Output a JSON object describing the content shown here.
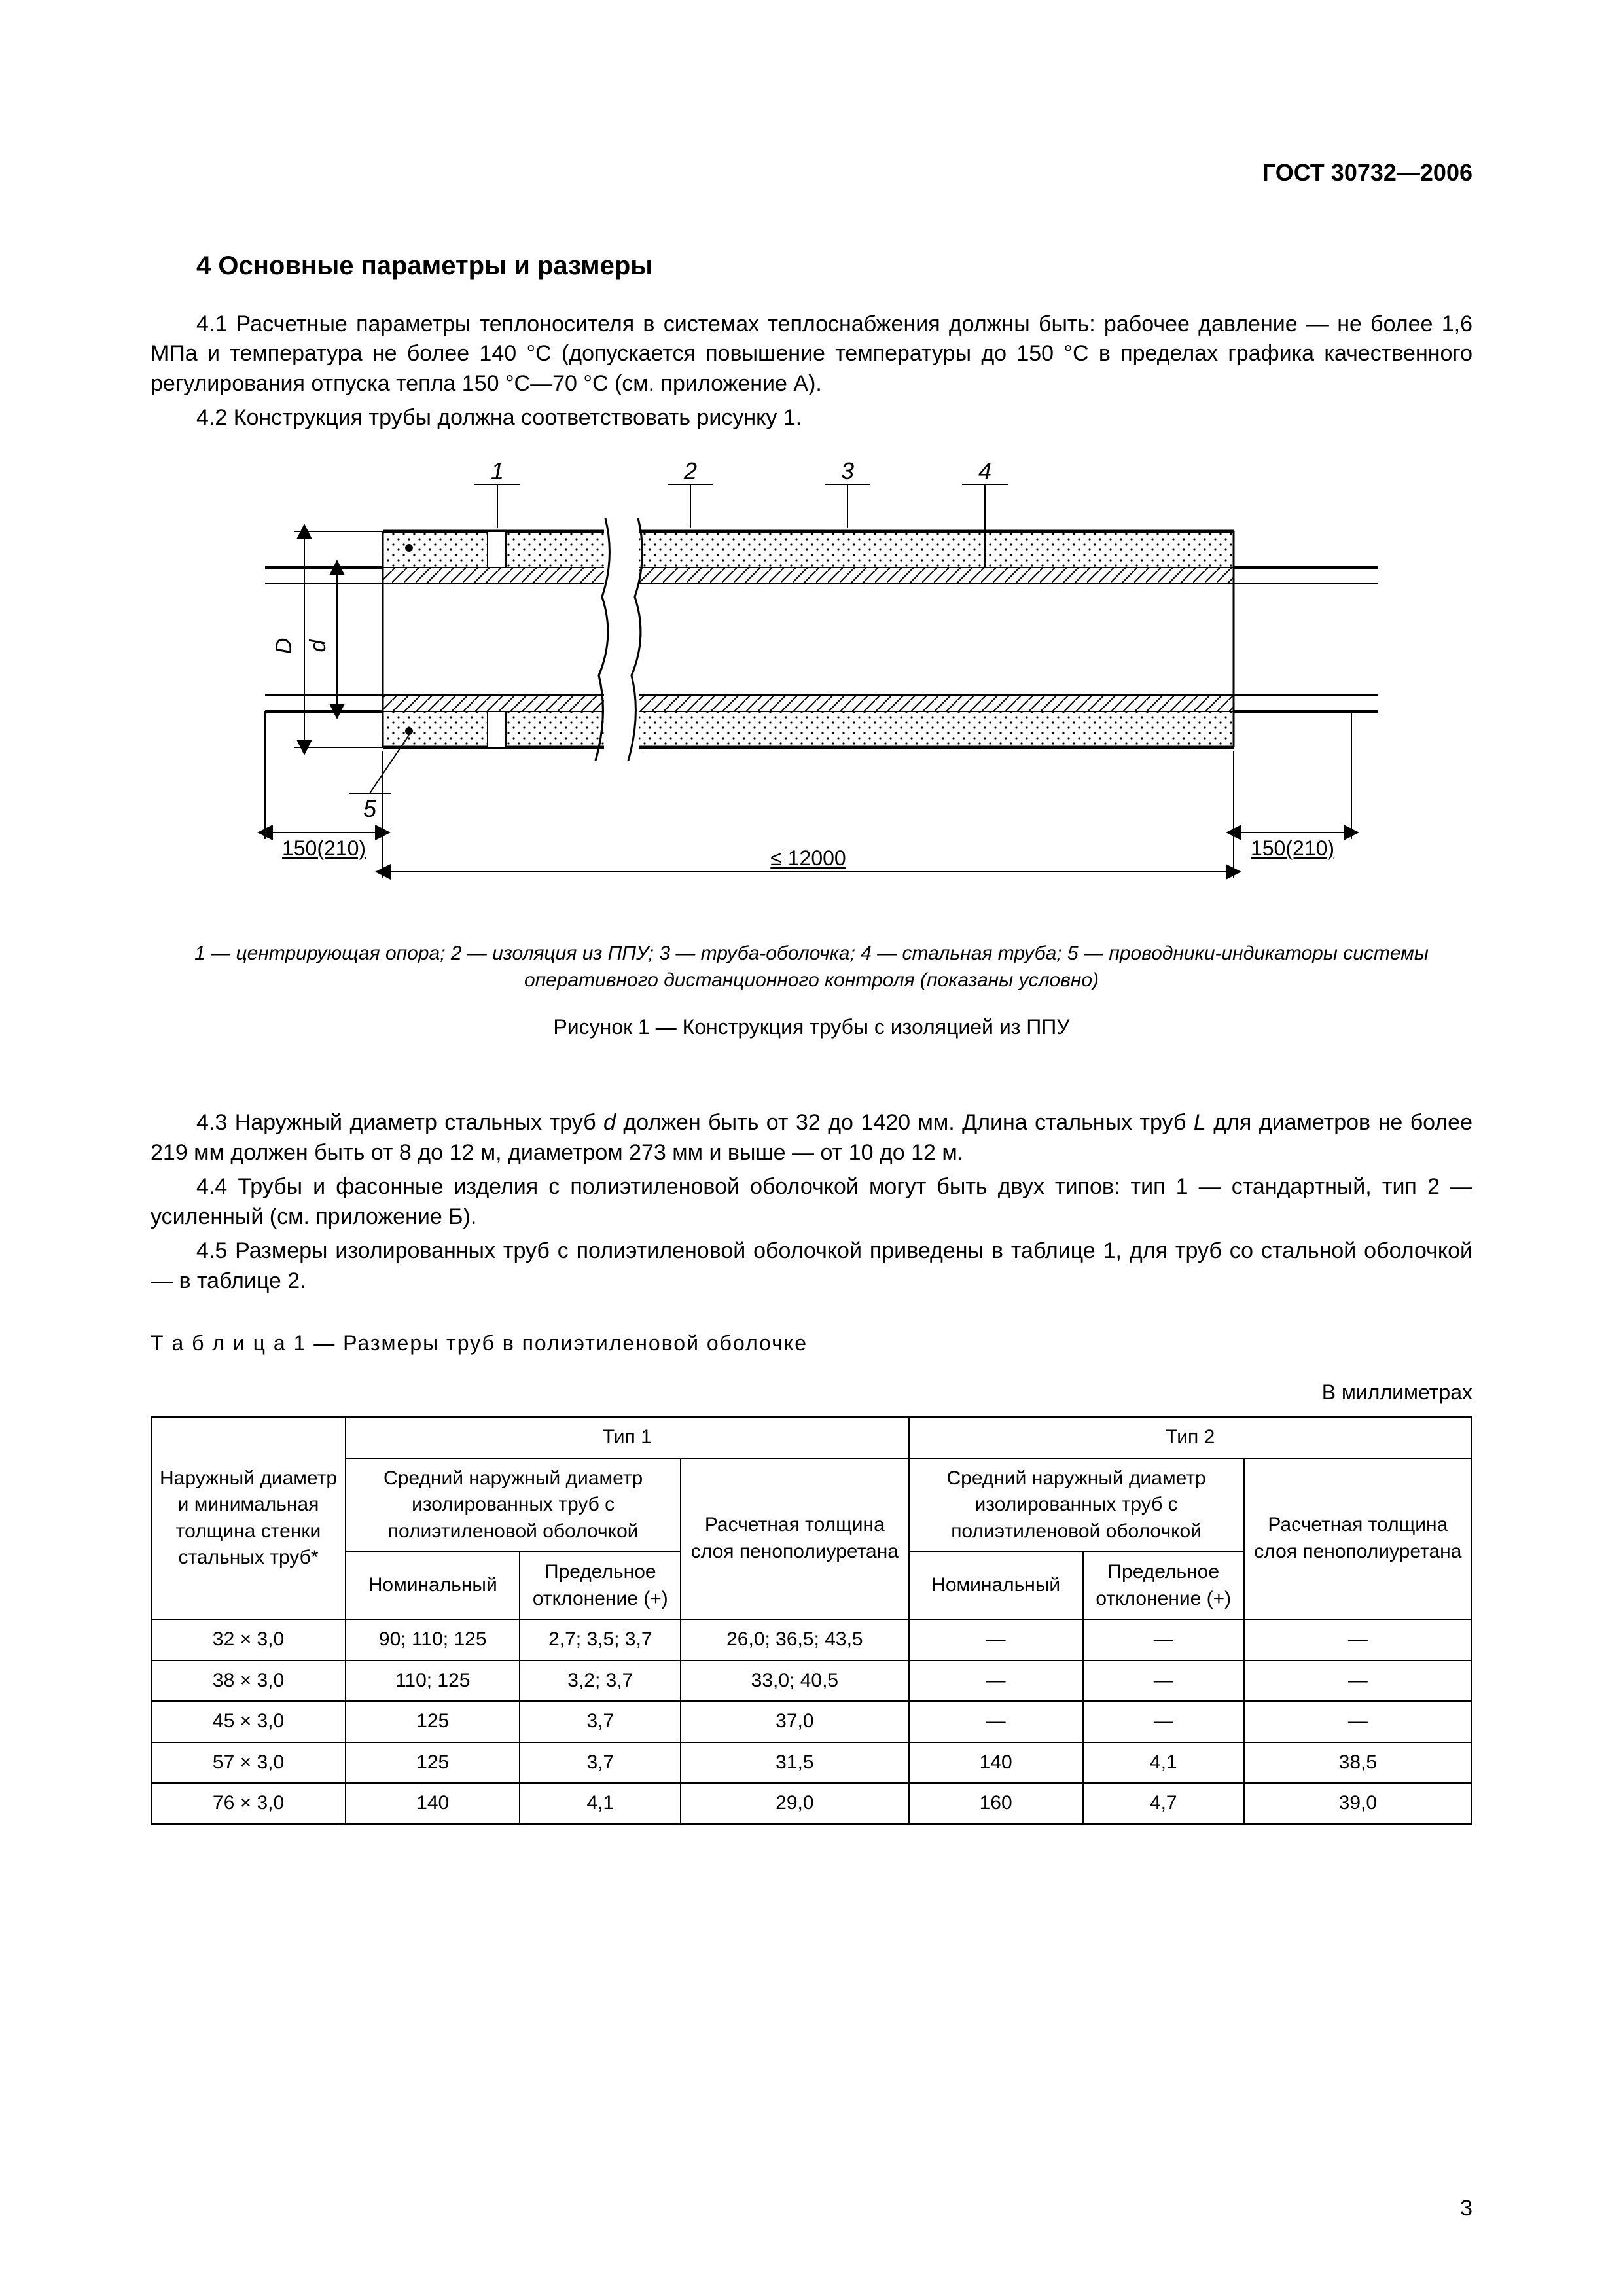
{
  "header": {
    "doc_id": "ГОСТ 30732—2006"
  },
  "section": {
    "num_title": "4  Основные параметры и размеры"
  },
  "paras": {
    "p41": "4.1  Расчетные параметры теплоносителя в системах теплоснабжения должны быть: рабочее давление — не более 1,6 МПа и температура не более 140 °С (допускается повышение температуры до 150 °С в пределах графика качественного регулирования отпуска тепла 150 °С—70 °С (см. приложение А).",
    "p42": "4.2  Конструкция трубы должна соответствовать рисунку 1.",
    "p43a": "4.3  Наружный диаметр стальных труб ",
    "p43b": " должен быть от 32 до 1420 мм. Длина стальных труб ",
    "p43c": " для диаметров не более 219 мм должен быть от 8 до 12 м, диаметром 273 мм и выше — от 10 до 12 м.",
    "p44": "4.4  Трубы и фасонные изделия с полиэтиленовой оболочкой могут быть двух типов: тип 1 — стандартный, тип 2 — усиленный (см. приложение Б).",
    "p45": "4.5  Размеры изолированных труб с полиэтиленовой оболочкой приведены в таблице 1, для труб со стальной оболочкой — в таблице 2."
  },
  "figure": {
    "dim_left": "150(210)",
    "dim_right": "150(210)",
    "length_label": "≤ 12000",
    "D_label": "D",
    "d_label": "d",
    "callouts": [
      "1",
      "2",
      "3",
      "4",
      "5"
    ],
    "legend": "1 — центрирующая опора; 2 — изоляция из ППУ; 3 — труба-оболочка; 4 — стальная труба; 5 — проводники-индикаторы системы оперативного дистанционного контроля (показаны условно)",
    "caption": "Рисунок 1 — Конструкция трубы с изоляцией из ППУ",
    "colors": {
      "fill_dots": "#ffffff",
      "stroke": "#000000",
      "hatch": "#000000"
    }
  },
  "table1": {
    "caption": "Т а б л и ц а  1 — Размеры труб в полиэтиленовой оболочке",
    "units": "В миллиметрах",
    "headers": {
      "c1": "Наружный диаметр и минимальная толщина стенки стальных труб*",
      "t1": "Тип 1",
      "t2": "Тип 2",
      "avg_diam": "Средний наружный диаметр изолированных труб с полиэтиленовой оболочкой",
      "nom": "Номинальный",
      "dev": "Предельное отклонение (+)",
      "thick": "Расчетная толщина слоя пенополиуретана"
    },
    "rows": [
      {
        "size": "32 × 3,0",
        "t1_nom": "90; 110; 125",
        "t1_dev": "2,7; 3,5; 3,7",
        "t1_thk": "26,0; 36,5; 43,5",
        "t2_nom": "—",
        "t2_dev": "—",
        "t2_thk": "—"
      },
      {
        "size": "38 × 3,0",
        "t1_nom": "110; 125",
        "t1_dev": "3,2; 3,7",
        "t1_thk": "33,0; 40,5",
        "t2_nom": "—",
        "t2_dev": "—",
        "t2_thk": "—"
      },
      {
        "size": "45 × 3,0",
        "t1_nom": "125",
        "t1_dev": "3,7",
        "t1_thk": "37,0",
        "t2_nom": "—",
        "t2_dev": "—",
        "t2_thk": "—"
      },
      {
        "size": "57 × 3,0",
        "t1_nom": "125",
        "t1_dev": "3,7",
        "t1_thk": "31,5",
        "t2_nom": "140",
        "t2_dev": "4,1",
        "t2_thk": "38,5"
      },
      {
        "size": "76 × 3,0",
        "t1_nom": "140",
        "t1_dev": "4,1",
        "t1_thk": "29,0",
        "t2_nom": "160",
        "t2_dev": "4,7",
        "t2_thk": "39,0"
      }
    ]
  },
  "page_number": "3"
}
